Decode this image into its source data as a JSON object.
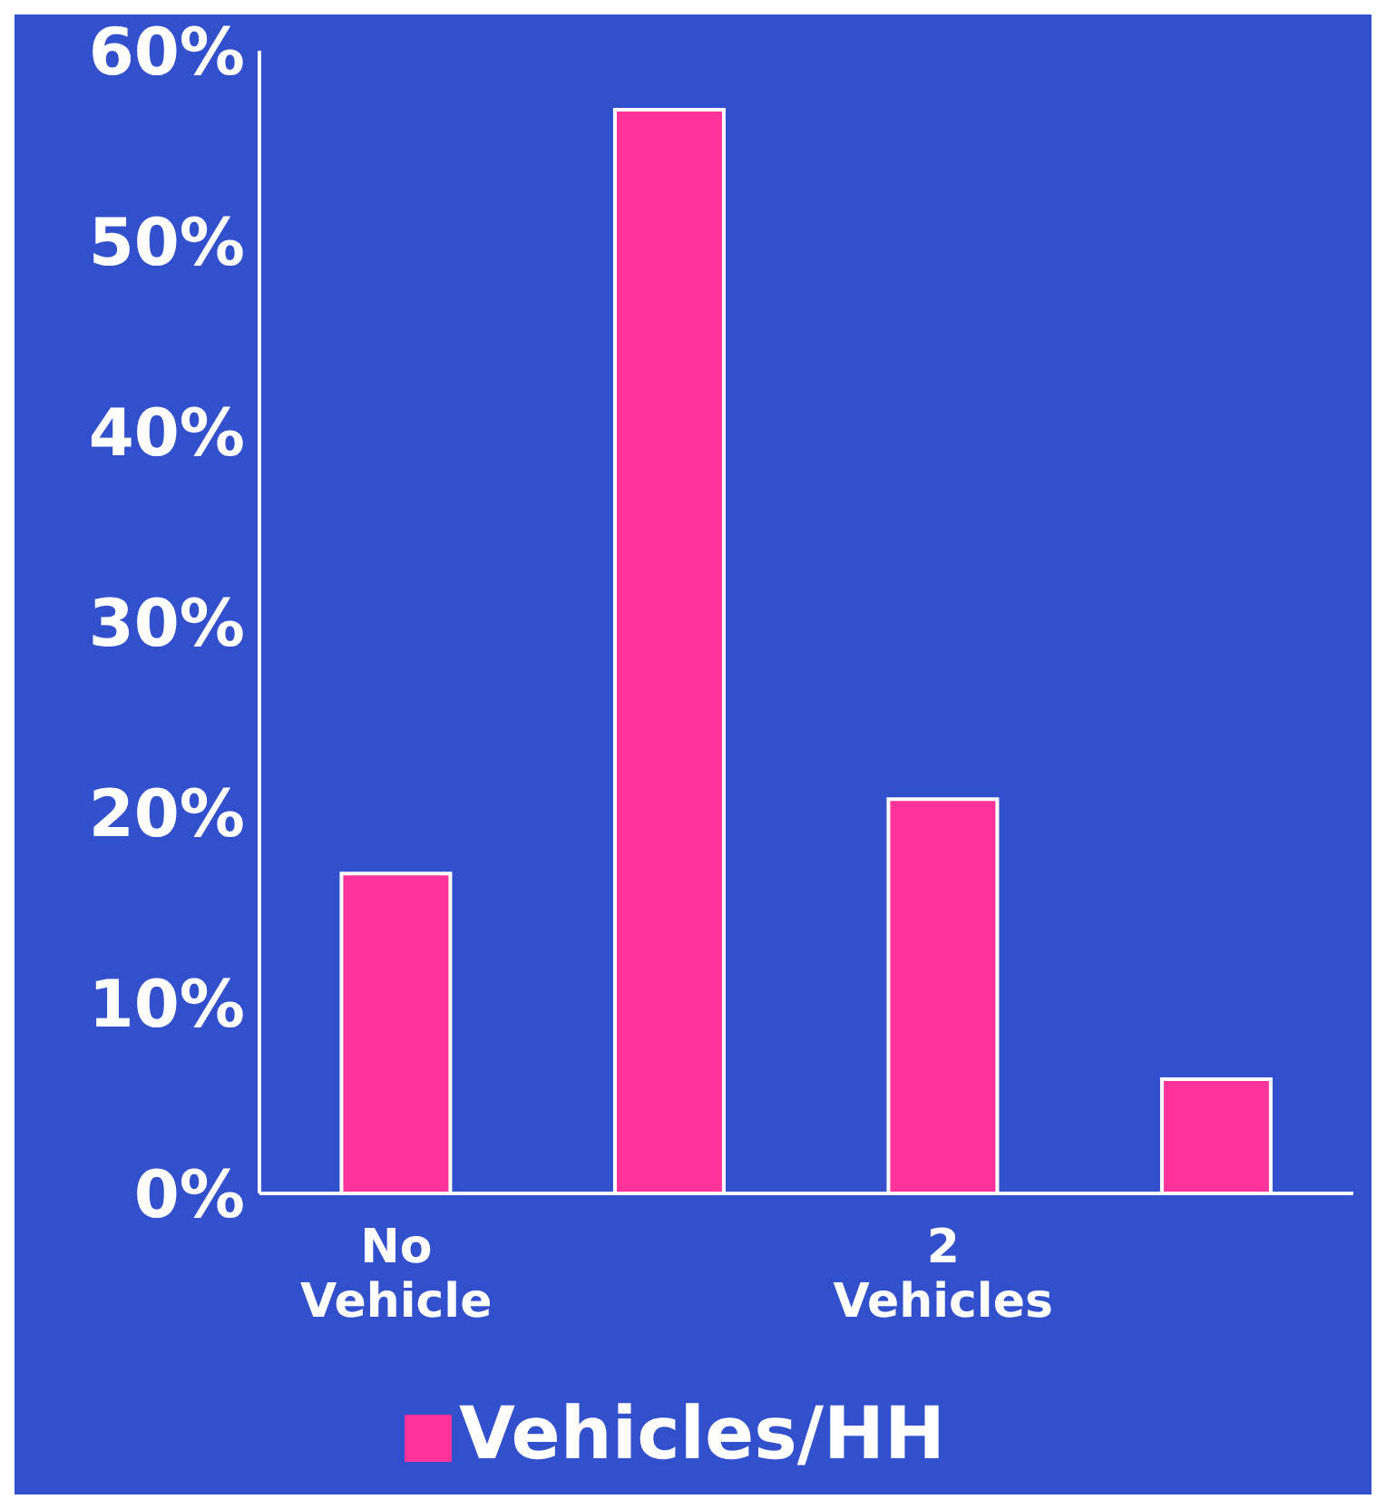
{
  "chart_data": {
    "type": "bar",
    "categories": [
      "No Vehicle",
      null,
      "2 Vehicles",
      null
    ],
    "series": [
      {
        "name": "Vehicles/HH",
        "color": "#ff3399",
        "values": [
          16.8,
          56.9,
          20.7,
          6.0
        ]
      }
    ],
    "ylim": [
      0,
      60
    ],
    "yticks": [
      {
        "value": 0,
        "label": "0%"
      },
      {
        "value": 10,
        "label": "10%"
      },
      {
        "value": 20,
        "label": "20%"
      },
      {
        "value": 30,
        "label": "30%"
      },
      {
        "value": 40,
        "label": "40%"
      },
      {
        "value": 50,
        "label": "50%"
      },
      {
        "value": 60,
        "label": "60%"
      }
    ],
    "grid": false,
    "legend": "bottom"
  }
}
